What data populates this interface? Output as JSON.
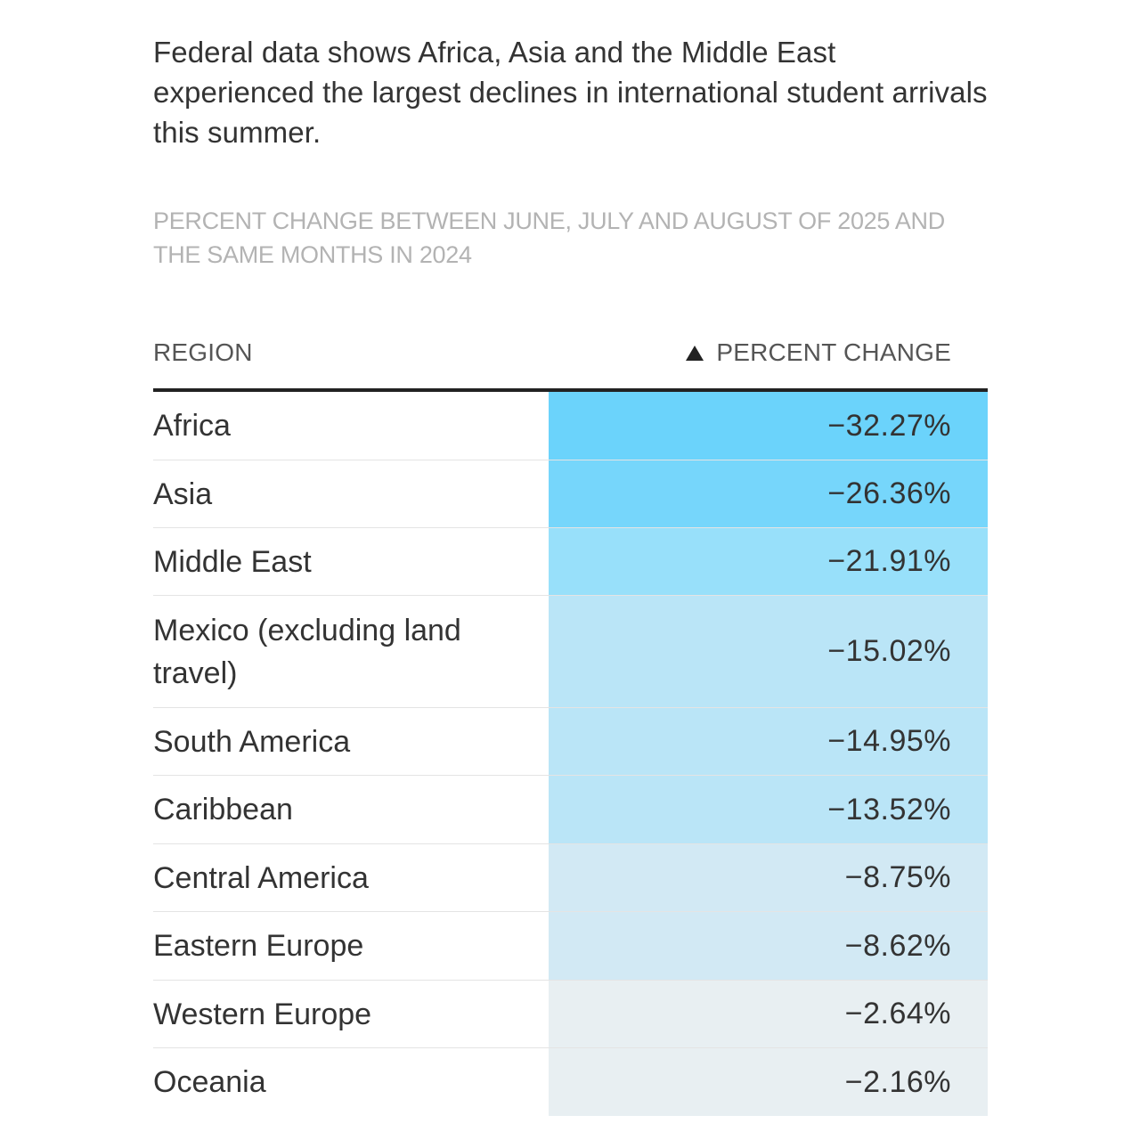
{
  "headline": "Federal data shows Africa, Asia and the Middle East experienced the largest declines in international student arrivals this summer.",
  "subhead": "PERCENT CHANGE BETWEEN JUNE, JULY AND AUGUST OF 2025 AND THE SAME MONTHS IN 2024",
  "table": {
    "columns": {
      "region": "REGION",
      "percent_change": "PERCENT CHANGE",
      "sort_icon": "triangle-up-icon"
    }
  },
  "colors": {
    "scale": [
      "#e8eff2",
      "#d2e9f4",
      "#bae5f7",
      "#98e0fa",
      "#76d6fb",
      "#6bd3fb"
    ]
  },
  "chart_data": {
    "type": "table",
    "columns": [
      "REGION",
      "PERCENT CHANGE"
    ],
    "rows": [
      {
        "region": "Africa",
        "value": -32.27,
        "label": "−32.27%"
      },
      {
        "region": "Asia",
        "value": -26.36,
        "label": "−26.36%"
      },
      {
        "region": "Middle East",
        "value": -21.91,
        "label": "−21.91%"
      },
      {
        "region": "Mexico (excluding land travel)",
        "value": -15.02,
        "label": "−15.02%"
      },
      {
        "region": "South America",
        "value": -14.95,
        "label": "−14.95%"
      },
      {
        "region": "Caribbean",
        "value": -13.52,
        "label": "−13.52%"
      },
      {
        "region": "Central America",
        "value": -8.75,
        "label": "−8.75%"
      },
      {
        "region": "Eastern Europe",
        "value": -8.62,
        "label": "−8.62%"
      },
      {
        "region": "Western Europe",
        "value": -2.64,
        "label": "−2.64%"
      },
      {
        "region": "Oceania",
        "value": -2.16,
        "label": "−2.16%"
      }
    ]
  }
}
